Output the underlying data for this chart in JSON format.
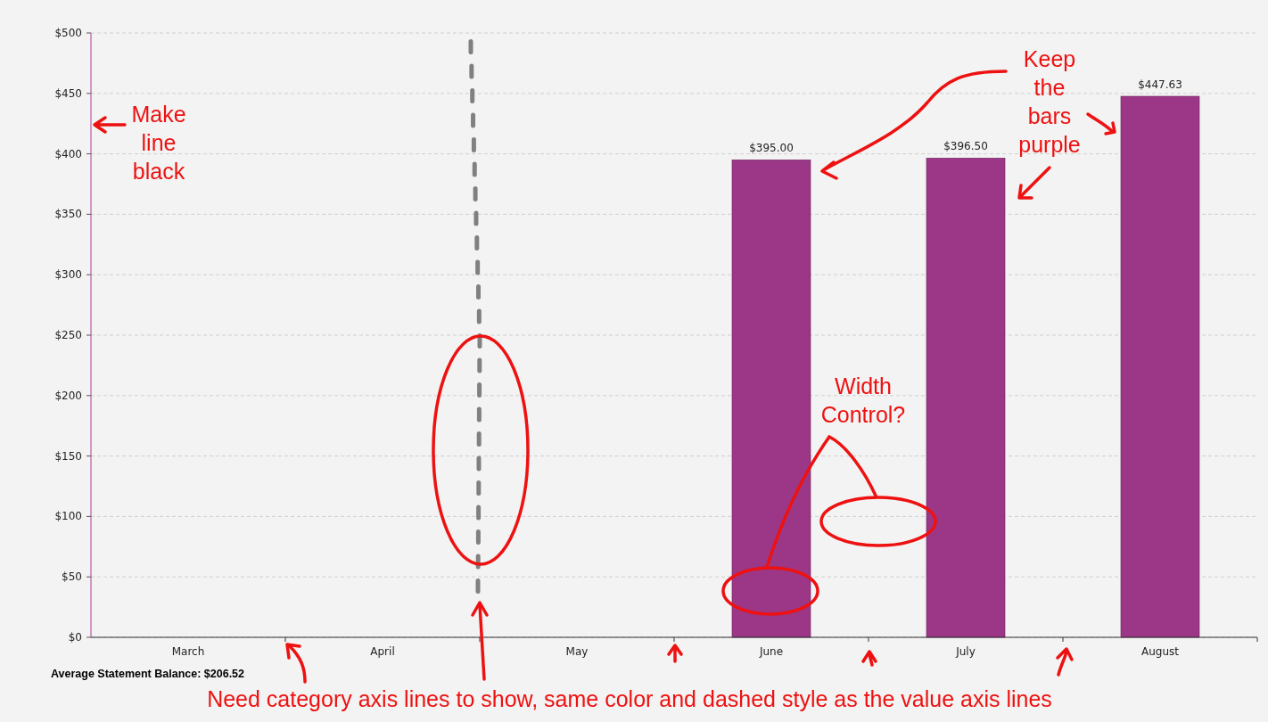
{
  "chart_data": {
    "type": "bar",
    "categories": [
      "March",
      "April",
      "May",
      "June",
      "July",
      "August"
    ],
    "values": [
      null,
      null,
      null,
      395.0,
      396.5,
      447.63
    ],
    "value_labels": [
      null,
      null,
      null,
      "$395.00",
      "$396.50",
      "$447.63"
    ],
    "color": "#9b3786",
    "ylim": [
      0,
      500
    ],
    "yticks": [
      {
        "value": 0,
        "label": "$0"
      },
      {
        "value": 50,
        "label": "$50"
      },
      {
        "value": 100,
        "label": "$100"
      },
      {
        "value": 150,
        "label": "$150"
      },
      {
        "value": 200,
        "label": "$200"
      },
      {
        "value": 250,
        "label": "$250"
      },
      {
        "value": 300,
        "label": "$300"
      },
      {
        "value": 350,
        "label": "$350"
      },
      {
        "value": 400,
        "label": "$400"
      },
      {
        "value": 450,
        "label": "$450"
      },
      {
        "value": 500,
        "label": "$500"
      }
    ],
    "grid": "y",
    "annotations": [
      "Average Statement Balance: $206.52",
      "Make line black",
      "Keep the bars purple",
      "Width Control?",
      "Need category axis lines to show, same color and dashed style as the value axis lines"
    ]
  }
}
